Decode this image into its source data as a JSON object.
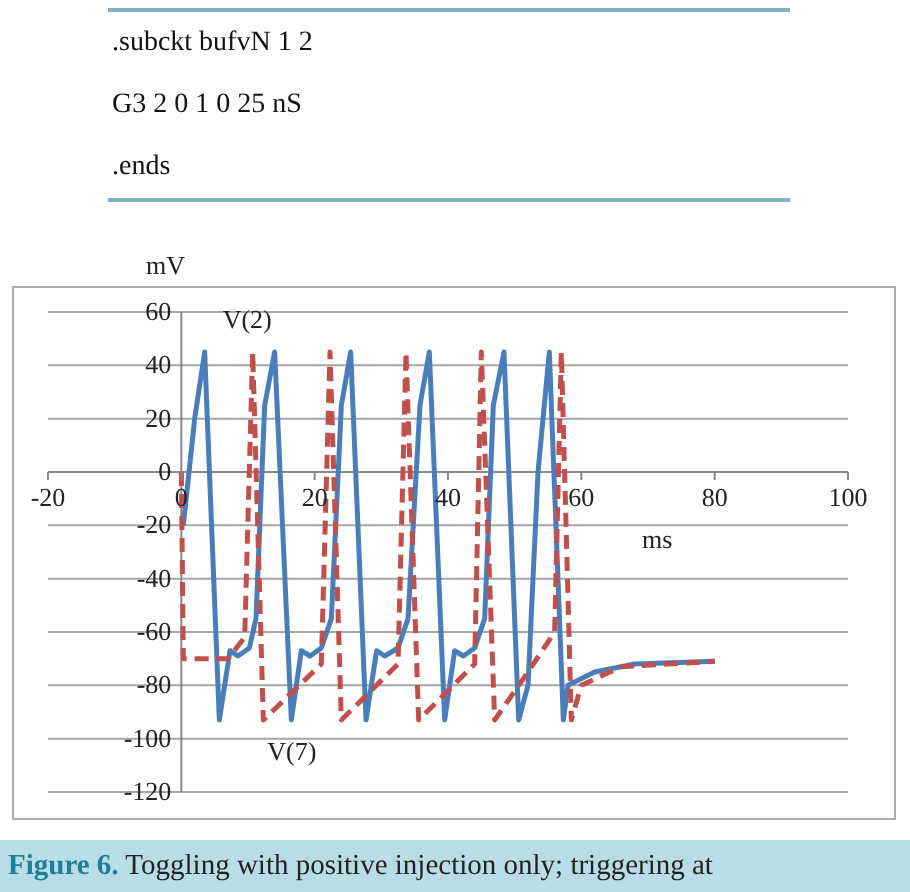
{
  "chart_data": {
    "type": "line",
    "xlabel": "ms",
    "ylabel": "mV",
    "annotations": [
      ".subckt bufvN 1 2",
      "G3 2 0 1 0 25 nS",
      ".ends",
      "Figure 6. Toggling with positive injection only; triggering at"
    ],
    "xlim": [
      -20,
      100
    ],
    "xticks": [
      -20,
      0,
      20,
      40,
      60,
      80,
      100
    ],
    "ylim": [
      -120,
      60
    ],
    "yticks": [
      -120,
      -100,
      -80,
      -60,
      -40,
      -20,
      0,
      20,
      40,
      60
    ],
    "grid": "y",
    "legend": false,
    "marker": "none",
    "series": [
      {
        "name": "V(2)",
        "color": "#4a7ebb",
        "line_style": "solid",
        "x": [
          0.3,
          2,
          3.5,
          5.7,
          7.3,
          8.5,
          10.2,
          11.2,
          12.5,
          14,
          16.5,
          18,
          19.3,
          21,
          22.5,
          24,
          25.4,
          27.7,
          29.3,
          30.5,
          32.5,
          34,
          35.8,
          37.2,
          39.5,
          41,
          42.3,
          44,
          45.5,
          46.8,
          48.4,
          50.6,
          52,
          53.5,
          55.2,
          57.3,
          58,
          62,
          68,
          80
        ],
        "values": [
          -20,
          20,
          45,
          -93,
          -67,
          -69,
          -66,
          -55,
          25,
          45,
          -93,
          -67,
          -69,
          -66,
          -55,
          25,
          45,
          -93,
          -67,
          -69,
          -66,
          -55,
          25,
          45,
          -93,
          -67,
          -69,
          -66,
          -55,
          25,
          45,
          -93,
          -80,
          0,
          45,
          -93,
          -80,
          -75,
          -72,
          -71
        ]
      },
      {
        "name": "V(7)",
        "color": "#c0504d",
        "line_style": "dashed",
        "x": [
          0,
          0.3,
          7,
          9.5,
          10.7,
          12.3,
          21,
          22.3,
          24,
          32.5,
          33.7,
          35.6,
          44,
          45,
          47,
          52,
          56,
          57,
          58.5,
          60,
          66,
          80
        ],
        "values": [
          0,
          -70,
          -70,
          -62,
          45,
          -93,
          -72,
          45,
          -93,
          -72,
          45,
          -93,
          -72,
          45,
          -93,
          -75,
          -60,
          45,
          -93,
          -80,
          -73,
          -71
        ]
      }
    ]
  }
}
